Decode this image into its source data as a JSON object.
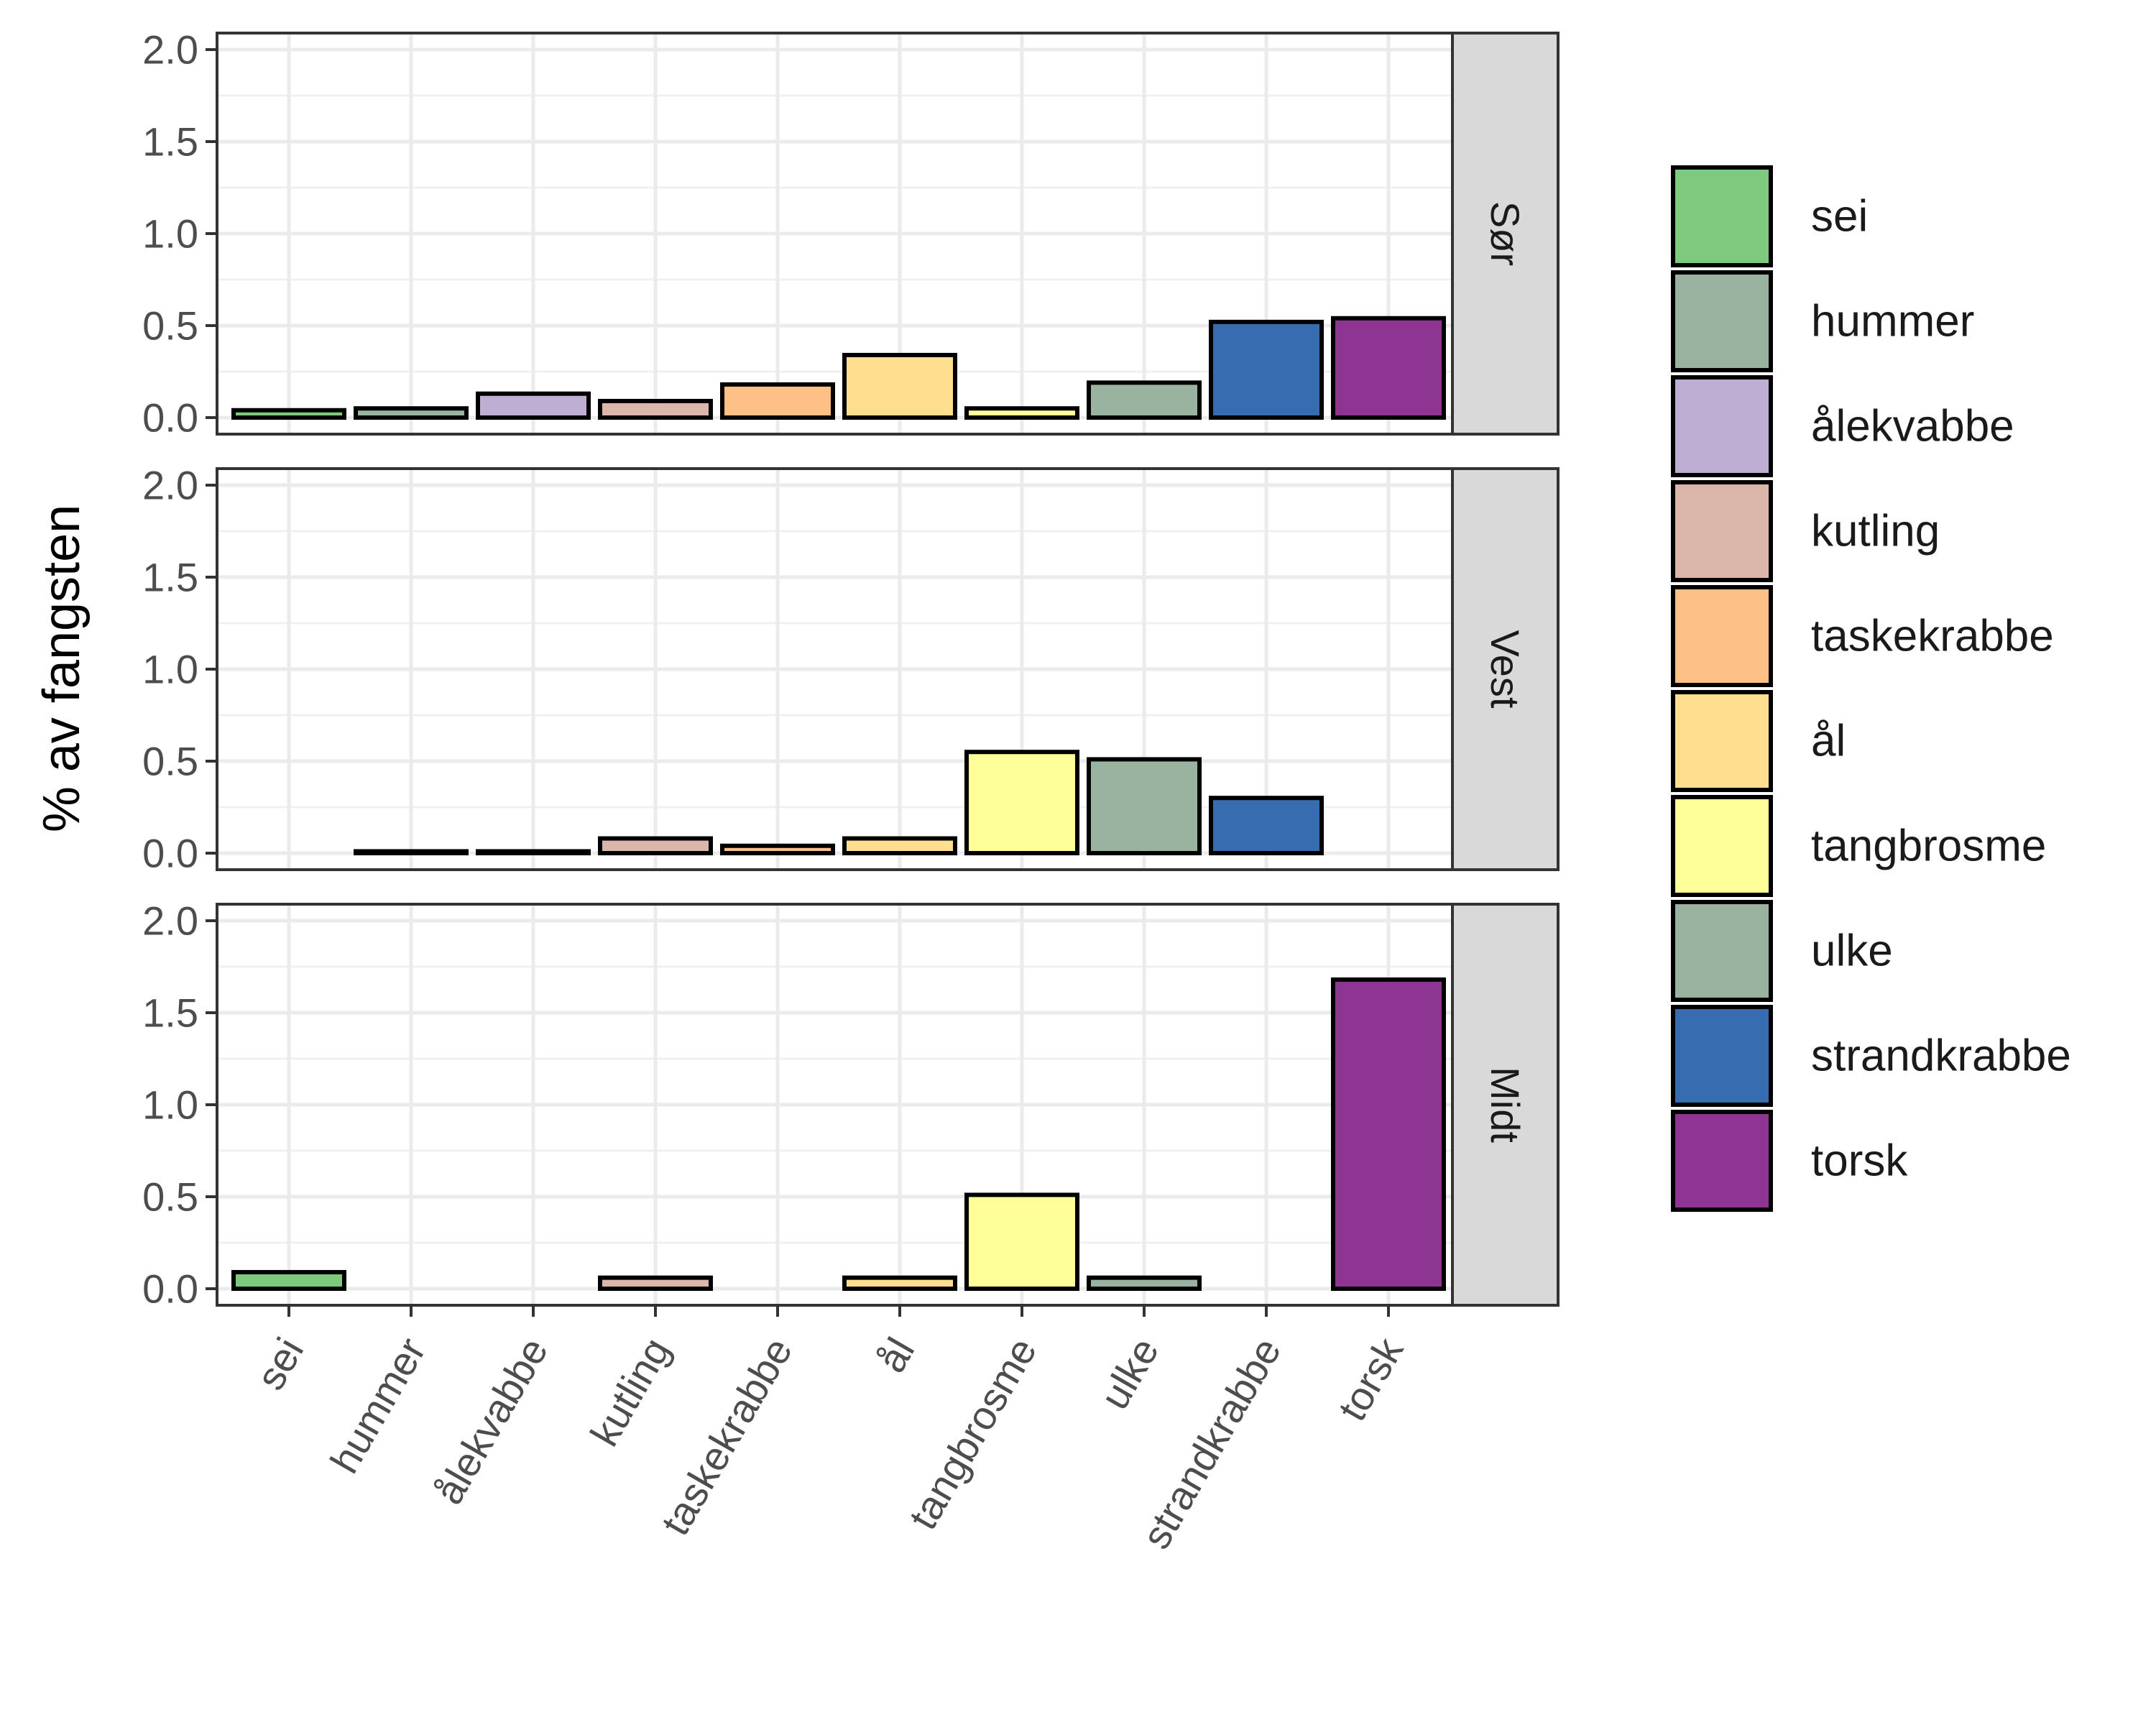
{
  "chart_data": {
    "type": "bar",
    "facet": "rows",
    "ylabel": "% av fangsten",
    "xlabel": "",
    "ylim": [
      0,
      2.0
    ],
    "yticks": [
      "0.0",
      "0.5",
      "1.0",
      "1.5",
      "2.0"
    ],
    "categories": [
      "sei",
      "hummer",
      "ålekvabbe",
      "kutling",
      "taskekrabbe",
      "ål",
      "tangbrosme",
      "ulke",
      "strandkrabbe",
      "torsk"
    ],
    "colors": [
      "#7fc97f",
      "#9ab3a0",
      "#beaed4",
      "#dbb6ab",
      "#fdc086",
      "#fedf8f",
      "#ffff99",
      "#9ab3a0",
      "#386cb0",
      "#8e3594"
    ],
    "legend": {
      "position": "right",
      "entries": [
        "sei",
        "hummer",
        "ålekvabbe",
        "kutling",
        "taskekrabbe",
        "ål",
        "tangbrosme",
        "ulke",
        "strandkrabbe",
        "torsk"
      ]
    },
    "panels": [
      {
        "name": "Sør",
        "values": [
          0.04,
          0.05,
          0.13,
          0.09,
          0.18,
          0.34,
          0.05,
          0.19,
          0.52,
          0.54
        ]
      },
      {
        "name": "Vest",
        "values": [
          null,
          0.01,
          0.01,
          0.08,
          0.04,
          0.08,
          0.55,
          0.51,
          0.3,
          null
        ]
      },
      {
        "name": "Midt",
        "values": [
          0.09,
          null,
          null,
          0.06,
          null,
          0.06,
          0.51,
          0.06,
          null,
          1.68
        ]
      }
    ]
  }
}
